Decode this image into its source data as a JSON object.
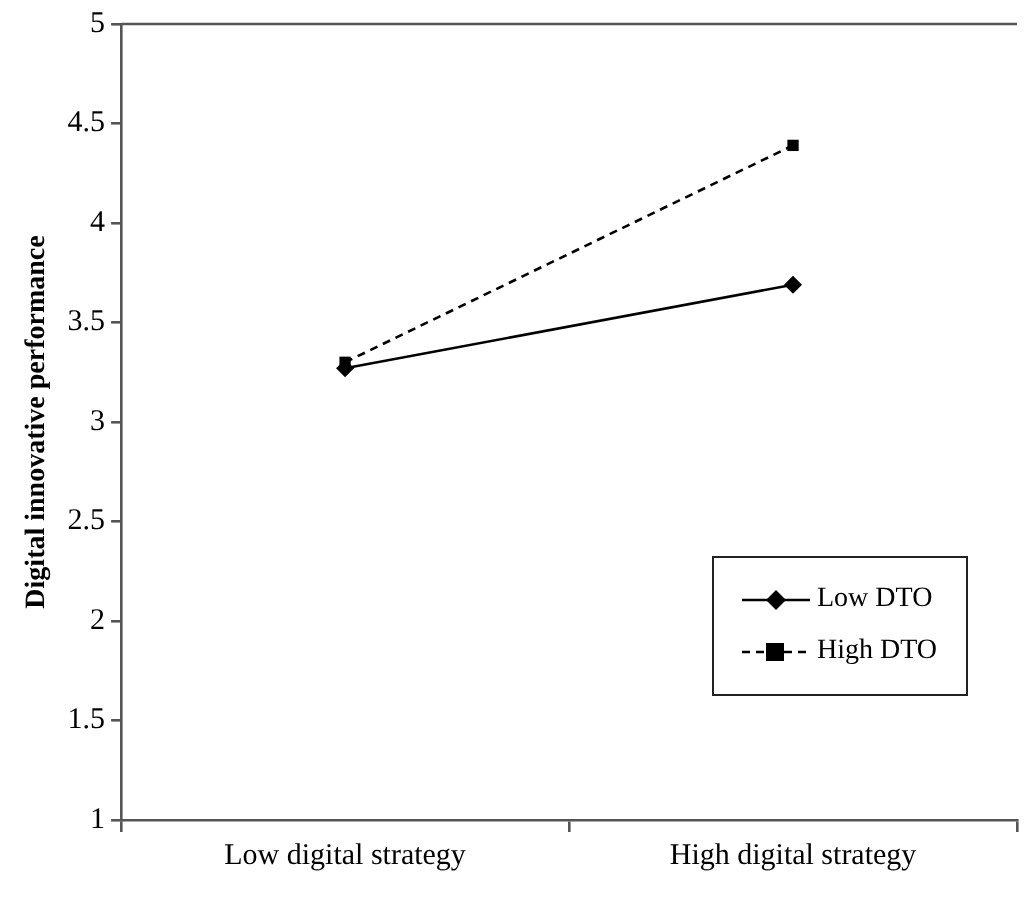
{
  "chart_data": {
    "type": "line",
    "ylabel": "Digital innovative performance",
    "categories": [
      "Low digital strategy",
      "High digital strategy"
    ],
    "series": [
      {
        "name": "Low DTO",
        "color": "#000000",
        "values": [
          3.27,
          3.69
        ],
        "marker": "diamond",
        "line_style": "solid"
      },
      {
        "name": "High DTO",
        "color": "#000000",
        "values": [
          3.3,
          4.39
        ],
        "marker": "square",
        "line_style": "dashed"
      }
    ],
    "ylim": [
      1,
      5
    ],
    "yticks": [
      1,
      1.5,
      2,
      2.5,
      3,
      3.5,
      4,
      4.5,
      5
    ],
    "grid": false,
    "legend": "bottom right"
  }
}
